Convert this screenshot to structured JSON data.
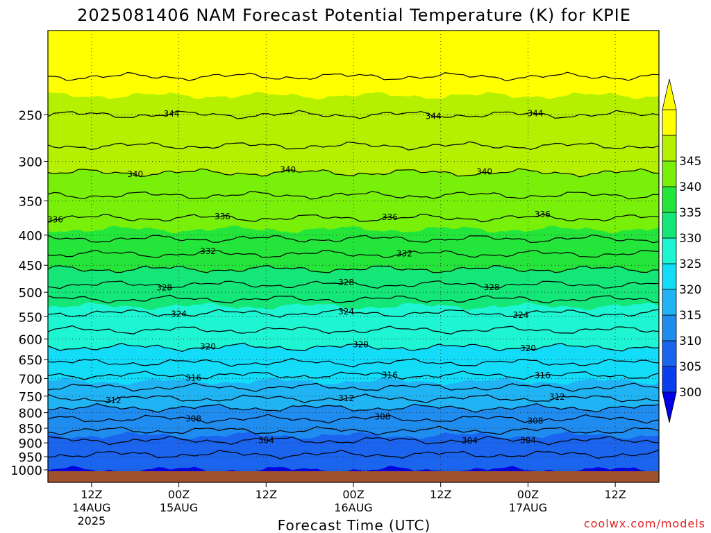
{
  "chart_data": {
    "type": "heatmap",
    "title": "2025081406 NAM Forecast Potential Temperature (K) for KPIE",
    "xlabel": "Forecast Time (UTC)",
    "ylabel": "",
    "watermark": "coolwx.com/models",
    "y_scale": "log",
    "ylim": [
      1000,
      180
    ],
    "y_ticks": [
      250,
      300,
      350,
      400,
      450,
      500,
      550,
      600,
      650,
      700,
      750,
      800,
      850,
      900,
      950,
      1000
    ],
    "x_range_hours": [
      6,
      90
    ],
    "x_ticks": [
      {
        "hour": 12,
        "label": "12Z",
        "sub": "14AUG",
        "sub2": "2025"
      },
      {
        "hour": 24,
        "label": "00Z",
        "sub": "15AUG",
        "sub2": ""
      },
      {
        "hour": 36,
        "label": "12Z",
        "sub": "",
        "sub2": ""
      },
      {
        "hour": 48,
        "label": "00Z",
        "sub": "16AUG",
        "sub2": ""
      },
      {
        "hour": 60,
        "label": "12Z",
        "sub": "",
        "sub2": ""
      },
      {
        "hour": 72,
        "label": "00Z",
        "sub": "17AUG",
        "sub2": ""
      },
      {
        "hour": 84,
        "label": "12Z",
        "sub": "",
        "sub2": ""
      }
    ],
    "colorbar": {
      "levels": [
        300,
        305,
        310,
        315,
        320,
        325,
        330,
        335,
        340,
        345
      ],
      "labels": [
        "300",
        "305",
        "310",
        "315",
        "320",
        "325",
        "330",
        "335",
        "340",
        "345"
      ],
      "colors": [
        "#0a3ff0",
        "#1a64ee",
        "#1f8cf0",
        "#20b4f4",
        "#12dcf8",
        "#1ef5d2",
        "#14e678",
        "#24e63a",
        "#78f00a",
        "#b4f000",
        "#ffff00"
      ],
      "below_color": "#0000e6",
      "above_color": "#ffff00"
    },
    "theta_profile": [
      {
        "p": 1000,
        "theta": 300
      },
      {
        "p": 900,
        "theta": 303.5
      },
      {
        "p": 850,
        "theta": 306.5
      },
      {
        "p": 800,
        "theta": 309
      },
      {
        "p": 750,
        "theta": 312.5
      },
      {
        "p": 700,
        "theta": 315.5
      },
      {
        "p": 650,
        "theta": 318.5
      },
      {
        "p": 600,
        "theta": 321
      },
      {
        "p": 550,
        "theta": 323.5
      },
      {
        "p": 500,
        "theta": 327
      },
      {
        "p": 450,
        "theta": 330.5
      },
      {
        "p": 400,
        "theta": 334.5
      },
      {
        "p": 350,
        "theta": 337.5
      },
      {
        "p": 300,
        "theta": 341
      },
      {
        "p": 250,
        "theta": 344
      },
      {
        "p": 200,
        "theta": 347
      },
      {
        "p": 180,
        "theta": 348
      }
    ],
    "contour_interval": 2,
    "contour_range": [
      302,
      346
    ],
    "contour_labels": [
      {
        "hour": 7,
        "value": 336
      },
      {
        "hour": 18,
        "value": 340
      },
      {
        "hour": 23,
        "value": 344
      },
      {
        "hour": 30,
        "value": 336
      },
      {
        "hour": 28,
        "value": 332
      },
      {
        "hour": 22,
        "value": 328
      },
      {
        "hour": 24,
        "value": 324
      },
      {
        "hour": 28,
        "value": 320
      },
      {
        "hour": 26,
        "value": 316
      },
      {
        "hour": 15,
        "value": 312
      },
      {
        "hour": 26,
        "value": 308
      },
      {
        "hour": 36,
        "value": 304
      },
      {
        "hour": 39,
        "value": 340
      },
      {
        "hour": 53,
        "value": 336
      },
      {
        "hour": 55,
        "value": 332
      },
      {
        "hour": 47,
        "value": 328
      },
      {
        "hour": 47,
        "value": 324
      },
      {
        "hour": 49,
        "value": 320
      },
      {
        "hour": 53,
        "value": 316
      },
      {
        "hour": 47,
        "value": 312
      },
      {
        "hour": 52,
        "value": 308
      },
      {
        "hour": 59,
        "value": 344
      },
      {
        "hour": 64,
        "value": 304
      },
      {
        "hour": 66,
        "value": 340
      },
      {
        "hour": 73,
        "value": 344
      },
      {
        "hour": 74,
        "value": 336
      },
      {
        "hour": 67,
        "value": 328
      },
      {
        "hour": 71,
        "value": 324
      },
      {
        "hour": 72,
        "value": 320
      },
      {
        "hour": 74,
        "value": 316
      },
      {
        "hour": 76,
        "value": 312
      },
      {
        "hour": 73,
        "value": 308
      },
      {
        "hour": 72,
        "value": 304
      }
    ],
    "surface_color": "#a0522d",
    "grid": true
  }
}
